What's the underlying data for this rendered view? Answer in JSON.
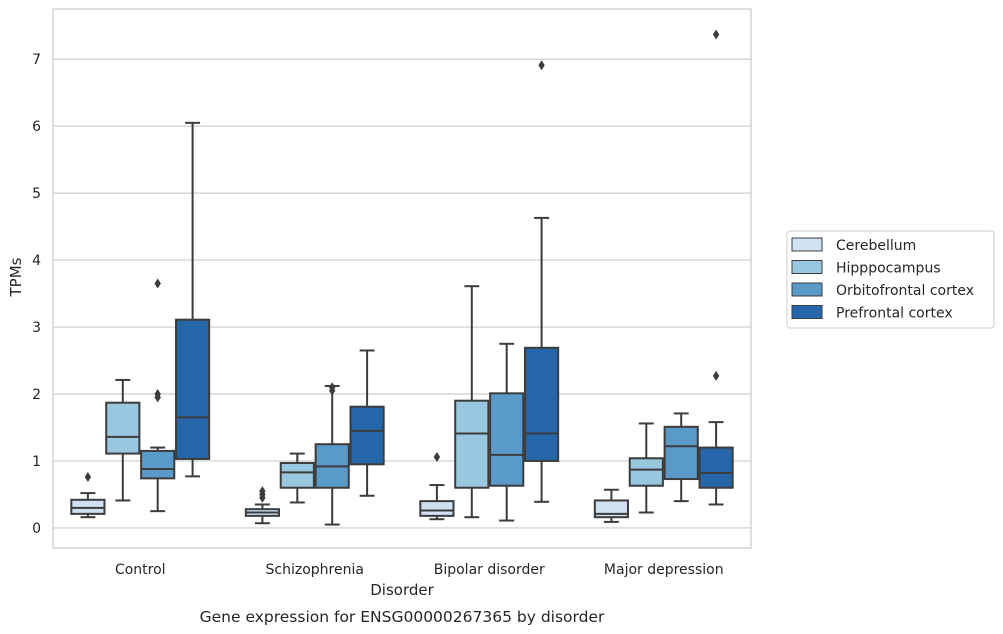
{
  "chart_data": {
    "type": "box",
    "caption": "Gene expression for ENSG00000267365 by disorder",
    "xlabel": "Disorder",
    "ylabel": "TPMs",
    "ylim": [
      -0.3,
      7.75
    ],
    "yticks": [
      0,
      1,
      2,
      3,
      4,
      5,
      6,
      7
    ],
    "grid": true,
    "legend_position": "right",
    "categories": [
      "Control",
      "Schizophrenia",
      "Bipolar disorder",
      "Major depression"
    ],
    "series": [
      {
        "name": "Cerebellum",
        "color": "#d0e2f2",
        "boxes": [
          {
            "min": 0.16,
            "q1": 0.21,
            "median": 0.3,
            "q3": 0.42,
            "max": 0.52,
            "outliers": [
              0.76
            ]
          },
          {
            "min": 0.07,
            "q1": 0.18,
            "median": 0.23,
            "q3": 0.28,
            "max": 0.35,
            "outliers": [
              0.45,
              0.5,
              0.55
            ]
          },
          {
            "min": 0.13,
            "q1": 0.18,
            "median": 0.26,
            "q3": 0.4,
            "max": 0.64,
            "outliers": [
              1.06
            ]
          },
          {
            "min": 0.09,
            "q1": 0.16,
            "median": 0.21,
            "q3": 0.41,
            "max": 0.57,
            "outliers": []
          }
        ]
      },
      {
        "name": "Hipppocampus",
        "color": "#9ac7e0",
        "boxes": [
          {
            "min": 0.41,
            "q1": 1.11,
            "median": 1.36,
            "q3": 1.87,
            "max": 2.21,
            "outliers": []
          },
          {
            "min": 0.38,
            "q1": 0.6,
            "median": 0.83,
            "q3": 0.97,
            "max": 1.11,
            "outliers": []
          },
          {
            "min": 0.16,
            "q1": 0.6,
            "median": 1.41,
            "q3": 1.9,
            "max": 3.61,
            "outliers": []
          },
          {
            "min": 0.23,
            "q1": 0.63,
            "median": 0.87,
            "q3": 1.04,
            "max": 1.56,
            "outliers": []
          }
        ]
      },
      {
        "name": "Orbitofrontal cortex",
        "color": "#5a9ac9",
        "boxes": [
          {
            "min": 0.25,
            "q1": 0.74,
            "median": 0.88,
            "q3": 1.15,
            "max": 1.2,
            "outliers": [
              1.95,
              2.0,
              3.65
            ]
          },
          {
            "min": 0.05,
            "q1": 0.6,
            "median": 0.92,
            "q3": 1.25,
            "max": 2.12,
            "outliers": [
              2.05,
              2.1
            ]
          },
          {
            "min": 0.11,
            "q1": 0.63,
            "median": 1.09,
            "q3": 2.01,
            "max": 2.75,
            "outliers": []
          },
          {
            "min": 0.4,
            "q1": 0.73,
            "median": 1.22,
            "q3": 1.51,
            "max": 1.71,
            "outliers": []
          }
        ]
      },
      {
        "name": "Prefrontal cortex",
        "color": "#2566a8",
        "boxes": [
          {
            "min": 0.77,
            "q1": 1.03,
            "median": 1.65,
            "q3": 3.11,
            "max": 6.05,
            "outliers": []
          },
          {
            "min": 0.48,
            "q1": 0.95,
            "median": 1.45,
            "q3": 1.81,
            "max": 2.65,
            "outliers": []
          },
          {
            "min": 0.39,
            "q1": 1.0,
            "median": 1.41,
            "q3": 2.69,
            "max": 4.63,
            "outliers": [
              6.91
            ]
          },
          {
            "min": 0.35,
            "q1": 0.6,
            "median": 0.82,
            "q3": 1.2,
            "max": 1.58,
            "outliers": [
              2.27,
              7.37
            ]
          }
        ]
      }
    ]
  }
}
